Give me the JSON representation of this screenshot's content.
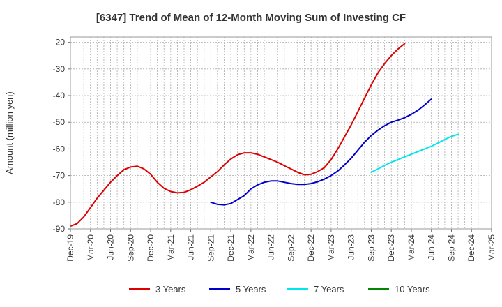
{
  "chart_data": {
    "type": "line",
    "title": "[6347]  Trend of Mean of 12-Month Moving Sum of Investing CF",
    "xlabel": "",
    "ylabel": "Amount (million yen)",
    "ylim": [
      -90,
      -18
    ],
    "yticks": [
      -20,
      -30,
      -40,
      -50,
      -60,
      -70,
      -80,
      -90
    ],
    "grid": true,
    "legend_position": "bottom",
    "x_tick_labels": [
      "Dec-19",
      "Mar-20",
      "Jun-20",
      "Sep-20",
      "Dec-20",
      "Mar-21",
      "Jun-21",
      "Sep-21",
      "Dec-21",
      "Mar-22",
      "Jun-22",
      "Sep-22",
      "Dec-22",
      "Mar-23",
      "Jun-23",
      "Sep-23",
      "Dec-23",
      "Mar-24",
      "Jun-24",
      "Sep-24",
      "Dec-24",
      "Mar-25"
    ],
    "x_months": [
      "Dec-19",
      "Jan-20",
      "Feb-20",
      "Mar-20",
      "Apr-20",
      "May-20",
      "Jun-20",
      "Jul-20",
      "Aug-20",
      "Sep-20",
      "Oct-20",
      "Nov-20",
      "Dec-20",
      "Jan-21",
      "Feb-21",
      "Mar-21",
      "Apr-21",
      "May-21",
      "Jun-21",
      "Jul-21",
      "Aug-21",
      "Sep-21",
      "Oct-21",
      "Nov-21",
      "Dec-21",
      "Jan-22",
      "Feb-22",
      "Mar-22",
      "Apr-22",
      "May-22",
      "Jun-22",
      "Jul-22",
      "Aug-22",
      "Sep-22",
      "Oct-22",
      "Nov-22",
      "Dec-22",
      "Jan-23",
      "Feb-23",
      "Mar-23",
      "Apr-23",
      "May-23",
      "Jun-23",
      "Jul-23",
      "Aug-23",
      "Sep-23",
      "Oct-23",
      "Nov-23",
      "Dec-23",
      "Jan-24",
      "Feb-24",
      "Mar-24",
      "Apr-24",
      "May-24",
      "Jun-24",
      "Jul-24",
      "Aug-24",
      "Sep-24",
      "Oct-24",
      "Nov-24",
      "Dec-24",
      "Jan-25",
      "Feb-25",
      "Mar-25"
    ],
    "series": [
      {
        "name": "3 Years",
        "color": "#dd0000",
        "start_index": 0,
        "values": [
          -89,
          -88,
          -85.5,
          -82,
          -78.5,
          -75.5,
          -72.5,
          -70,
          -67.8,
          -66.8,
          -66.5,
          -67.5,
          -69.5,
          -72.5,
          -74.8,
          -76,
          -76.5,
          -76.3,
          -75.3,
          -74,
          -72.5,
          -70.5,
          -68.5,
          -66,
          -63.8,
          -62.2,
          -61.5,
          -61.5,
          -62,
          -63,
          -64,
          -65,
          -66.3,
          -67.5,
          -68.8,
          -69.7,
          -69.5,
          -68.5,
          -67,
          -64,
          -60,
          -55.5,
          -51,
          -46,
          -41,
          -36,
          -31.5,
          -28,
          -25,
          -22.5,
          -20.5
        ]
      },
      {
        "name": "5 Years",
        "color": "#0000cc",
        "start_index": 21,
        "values": [
          -80,
          -80.8,
          -81,
          -80.5,
          -79,
          -77.5,
          -75,
          -73.5,
          -72.5,
          -72,
          -72,
          -72.5,
          -73,
          -73.3,
          -73.3,
          -73,
          -72.3,
          -71.3,
          -70,
          -68.3,
          -66,
          -63.5,
          -60.5,
          -57.5,
          -55,
          -53,
          -51.3,
          -50,
          -49.2,
          -48.3,
          -47,
          -45.5,
          -43.5,
          -41.3
        ]
      },
      {
        "name": "7 Years",
        "color": "#00e5ee",
        "start_index": 45,
        "values": [
          -68.8,
          -67.5,
          -66.2,
          -65,
          -64,
          -63,
          -62,
          -61,
          -60,
          -59,
          -57.8,
          -56.5,
          -55.3,
          -54.5
        ]
      },
      {
        "name": "10 Years",
        "color": "#008800",
        "start_index": 0,
        "values": []
      }
    ]
  }
}
